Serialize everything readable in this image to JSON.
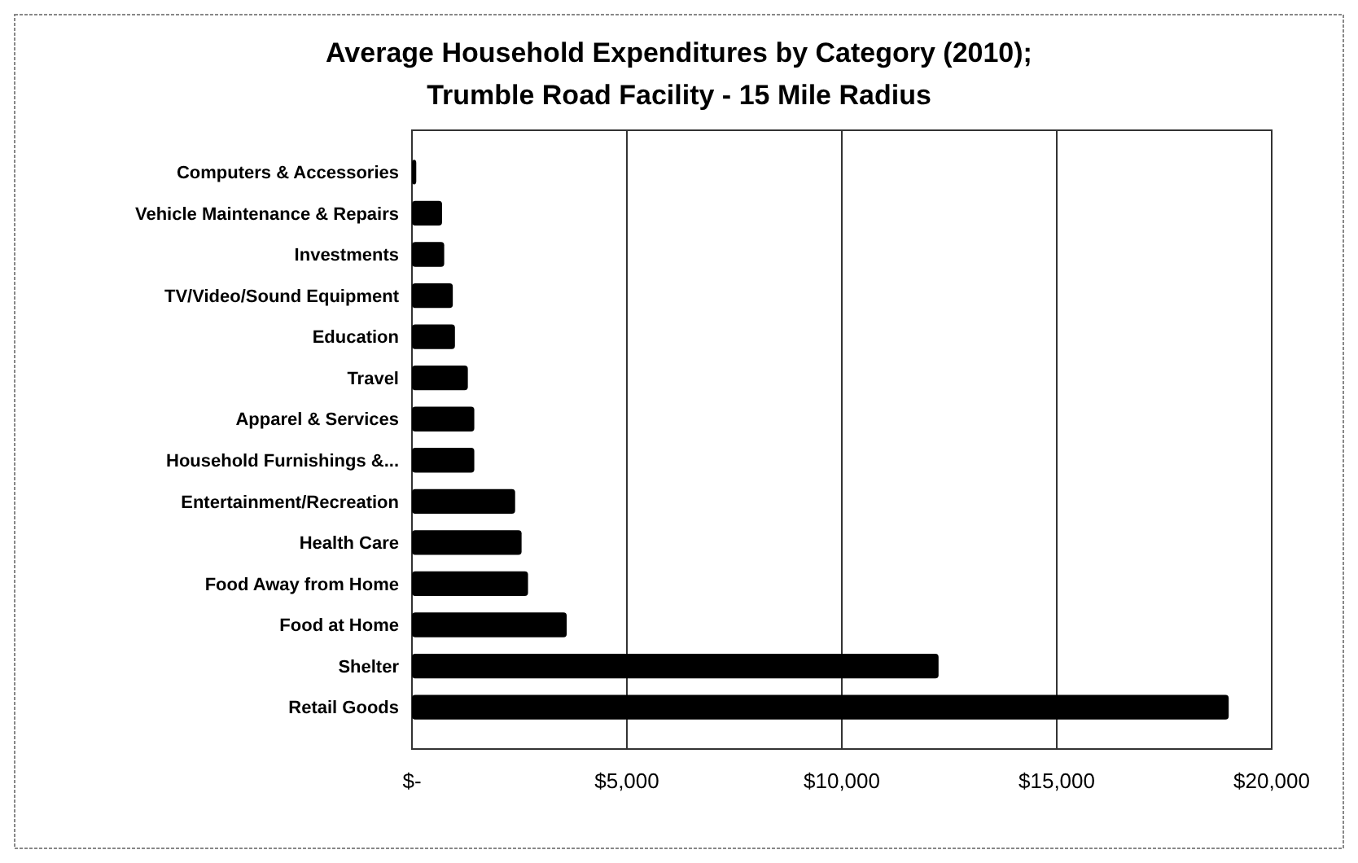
{
  "chart_data": {
    "type": "bar",
    "orientation": "horizontal",
    "title": "Average Household Expenditures by Category (2010);",
    "subtitle": "Trumble Road Facility - 15 Mile Radius",
    "categories": [
      "Computers & Accessories",
      "Vehicle Maintenance & Repairs",
      "Investments",
      "TV/Video/Sound Equipment",
      "Education",
      "Travel",
      "Apparel & Services",
      "Household Furnishings &...",
      "Entertainment/Recreation",
      "Health Care",
      "Food Away from Home",
      "Food at Home",
      "Shelter",
      "Retail Goods"
    ],
    "values": [
      100,
      700,
      750,
      950,
      1000,
      1300,
      1450,
      1450,
      2400,
      2550,
      2700,
      3600,
      12250,
      19000
    ],
    "color": "#000000",
    "xlim": [
      0,
      20000
    ],
    "xticks": [
      {
        "value": 0,
        "label": "$-"
      },
      {
        "value": 5000,
        "label": "$5,000"
      },
      {
        "value": 10000,
        "label": "$10,000"
      },
      {
        "value": 15000,
        "label": "$15,000"
      },
      {
        "value": 20000,
        "label": "$20,000"
      }
    ],
    "grid": "x"
  }
}
